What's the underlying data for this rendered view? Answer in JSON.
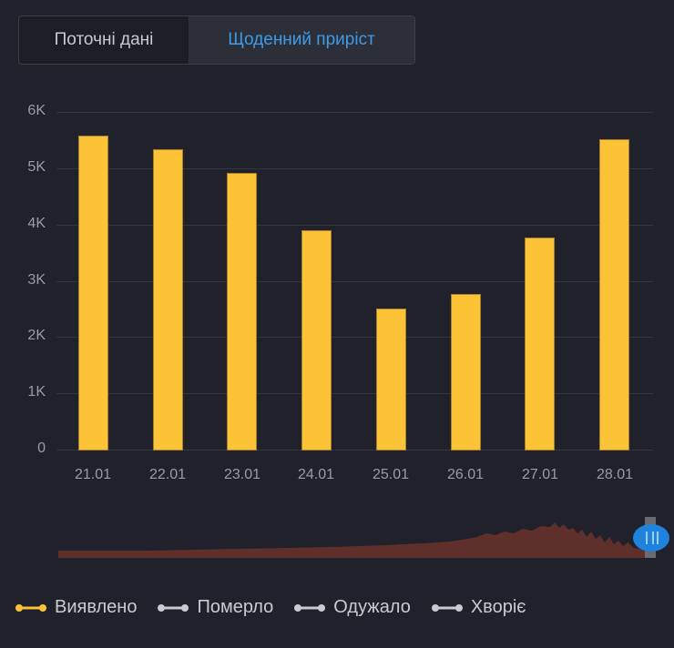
{
  "tabs": [
    {
      "label": "Поточні дані",
      "active": false
    },
    {
      "label": "Щоденний приріст",
      "active": true
    }
  ],
  "colors": {
    "background": "#20212a",
    "bar": "#fdc336",
    "active_tab": "#3d9be9",
    "navigator_area": "#5e2f2b",
    "handle": "#1e82de",
    "legend_inactive": "#c9cbd1"
  },
  "chart_data": {
    "type": "bar",
    "title": "",
    "xlabel": "",
    "ylabel": "",
    "categories": [
      "21.01",
      "22.01",
      "23.01",
      "24.01",
      "25.01",
      "26.01",
      "27.01",
      "28.01"
    ],
    "series": [
      {
        "name": "Виявлено",
        "values": [
          5580,
          5340,
          4920,
          3910,
          2520,
          2780,
          3770,
          5520
        ]
      }
    ],
    "yticks": [
      "0",
      "1K",
      "2K",
      "3K",
      "4K",
      "5K",
      "6K"
    ],
    "ylim": [
      0,
      6000
    ],
    "grid": true,
    "legend_position": "bottom"
  },
  "y_axis": {
    "labels": [
      "6K",
      "5K",
      "4K",
      "3K",
      "2K",
      "1K",
      "0"
    ]
  },
  "x_axis": {
    "labels": [
      "21.01",
      "22.01",
      "23.01",
      "24.01",
      "25.01",
      "26.01",
      "27.01",
      "28.01"
    ]
  },
  "legend": [
    {
      "label": "Виявлено",
      "color": "#fdc336",
      "active": true
    },
    {
      "label": "Померло",
      "color": "#c9cbd1",
      "active": false
    },
    {
      "label": "Одужало",
      "color": "#c9cbd1",
      "active": false
    },
    {
      "label": "Хворіє",
      "color": "#c9cbd1",
      "active": false
    }
  ]
}
